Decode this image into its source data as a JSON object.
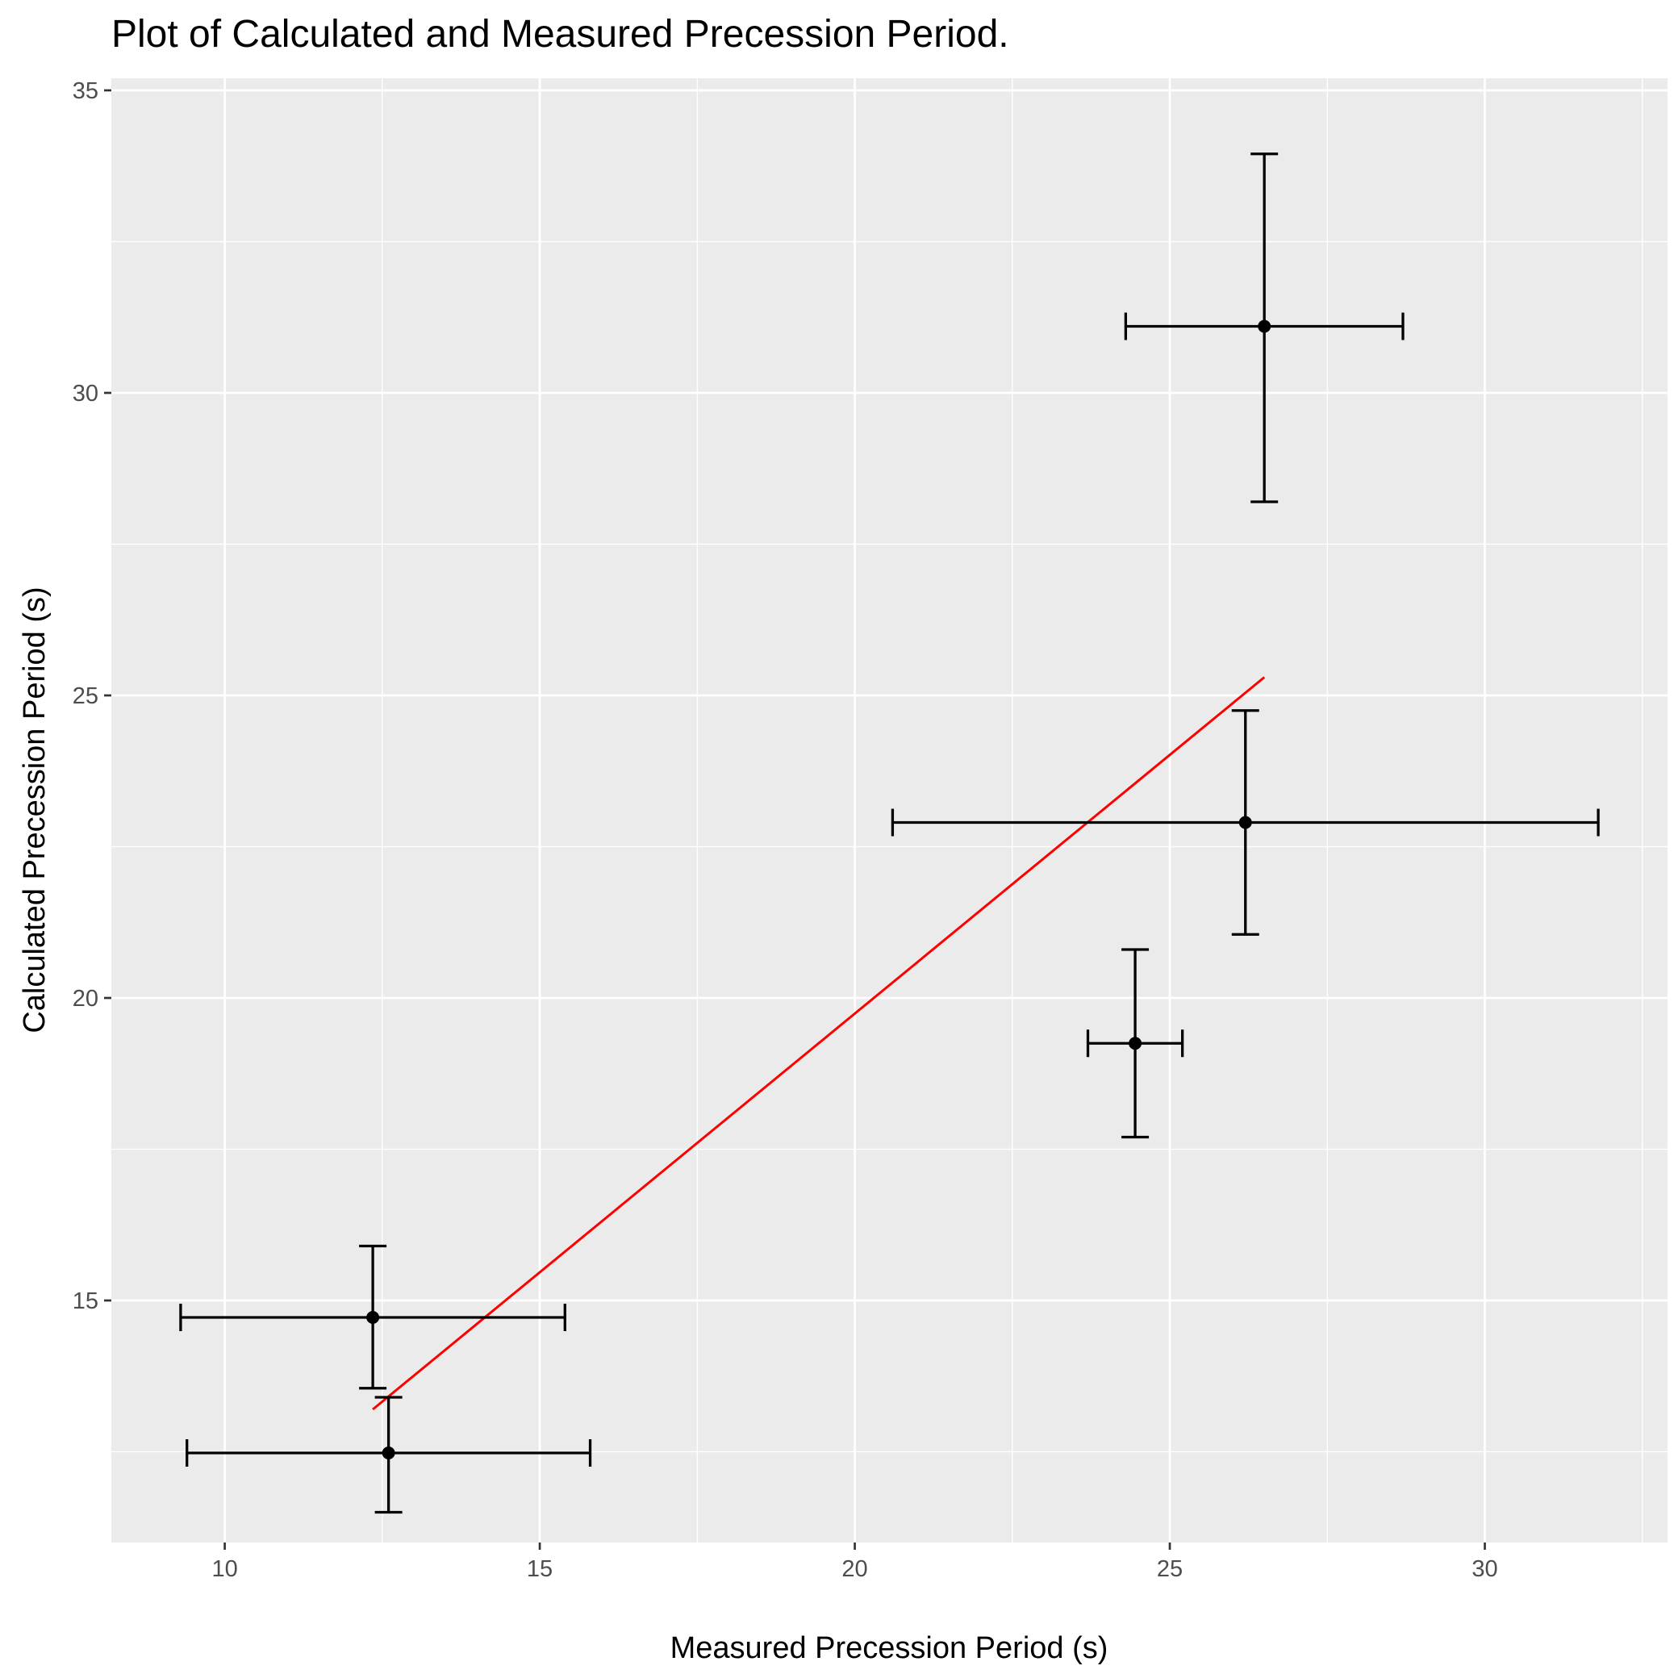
{
  "chart_data": {
    "type": "scatter",
    "title": "Plot of Calculated and Measured Precession Period.",
    "xlabel": "Measured Precession Period (s)",
    "ylabel": "Calculated Precession Period (s)",
    "xlim": [
      8.2,
      32.9
    ],
    "ylim": [
      11.0,
      35.2
    ],
    "x_ticks": [
      10,
      15,
      20,
      25,
      30
    ],
    "y_ticks": [
      15,
      20,
      25,
      30,
      35
    ],
    "x_tick_labels": [
      "10",
      "15",
      "20",
      "25",
      "30"
    ],
    "y_tick_labels": [
      "15",
      "20",
      "25",
      "30",
      "35"
    ],
    "grid": true,
    "points": [
      {
        "x": 12.35,
        "y": 14.72,
        "x_err_low": 9.3,
        "x_err_high": 15.4,
        "y_err_low": 13.55,
        "y_err_high": 15.9
      },
      {
        "x": 12.6,
        "y": 12.48,
        "x_err_low": 9.4,
        "x_err_high": 15.8,
        "y_err_low": 11.5,
        "y_err_high": 13.4
      },
      {
        "x": 24.45,
        "y": 19.25,
        "x_err_low": 23.7,
        "x_err_high": 25.2,
        "y_err_low": 17.7,
        "y_err_high": 20.8
      },
      {
        "x": 26.2,
        "y": 22.9,
        "x_err_low": 20.6,
        "x_err_high": 31.8,
        "y_err_low": 21.05,
        "y_err_high": 24.75
      },
      {
        "x": 26.5,
        "y": 31.1,
        "x_err_low": 24.3,
        "x_err_high": 28.7,
        "y_err_low": 28.2,
        "y_err_high": 33.95
      }
    ],
    "fit_line": {
      "x": [
        12.35,
        26.5
      ],
      "y": [
        13.2,
        25.3
      ],
      "color": "#ff0000"
    },
    "colors": {
      "panel": "#ebebeb",
      "grid": "#ffffff",
      "points": "#000000",
      "tick_text": "#4d4d4d"
    }
  }
}
